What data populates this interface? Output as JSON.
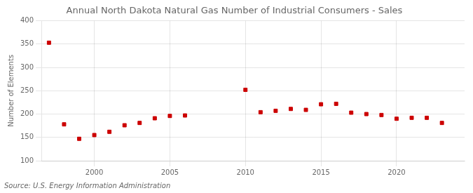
{
  "chart_data": {
    "type": "scatter",
    "title": "Annual North Dakota Natural Gas Number of Industrial Consumers - Sales",
    "ylabel": "Number of Elements",
    "annotation": "Source: U.S. Energy Information Administration",
    "x": [
      1997,
      1998,
      1999,
      2000,
      2001,
      2002,
      2003,
      2004,
      2005,
      2006,
      2007,
      2008,
      2009,
      2010,
      2011,
      2012,
      2013,
      2014,
      2015,
      2016,
      2017,
      2018,
      2019,
      2020,
      2021,
      2022,
      2023
    ],
    "values": [
      353,
      178,
      147,
      155,
      162,
      176,
      181,
      191,
      196,
      197,
      null,
      null,
      null,
      252,
      204,
      207,
      211,
      209,
      221,
      222,
      203,
      200,
      198,
      190,
      192,
      192,
      181
    ],
    "color": "#cc0000",
    "marker": "square",
    "xlim": [
      1996.5,
      2024.5
    ],
    "xticks": [
      2000,
      2005,
      2010,
      2015,
      2020
    ],
    "ylim": [
      100,
      400
    ],
    "yticks": [
      100,
      150,
      200,
      250,
      300,
      350,
      400
    ],
    "grid": true
  }
}
